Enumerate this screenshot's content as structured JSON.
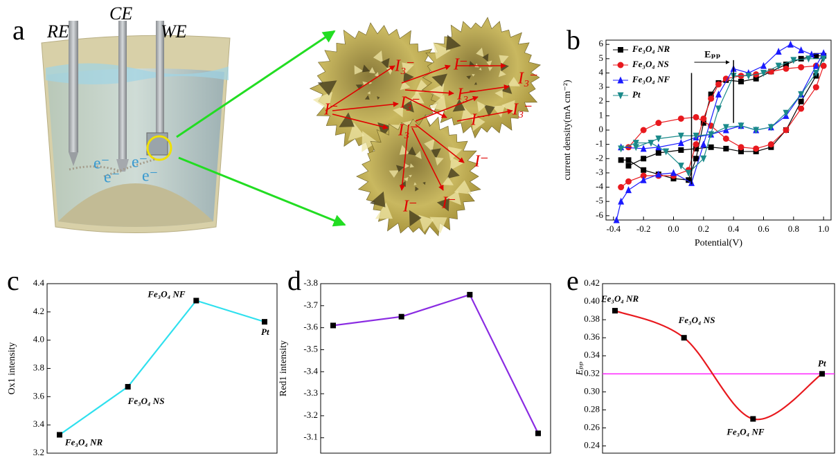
{
  "illustration": {
    "panel_label": "a",
    "electrodes": [
      "RE",
      "CE",
      "WE"
    ],
    "electron": "e⁻",
    "iodide": "I⁻",
    "triiodide": "I₃⁻"
  },
  "chart_data": [
    {
      "type": "line",
      "panel_label": "b",
      "xlabel": "Potential(V)",
      "ylabel": "current density(mA cm⁻²)",
      "xlim": [
        -0.45,
        1.05
      ],
      "xticks": [
        -0.4,
        -0.2,
        {
          "value": 0,
          "label": "0.0"
        },
        0.2,
        0.4,
        0.6,
        0.8,
        {
          "value": 1,
          "label": "1.0"
        }
      ],
      "ylim": [
        -6.3,
        6.3
      ],
      "yticks": [
        -6,
        -5,
        -4,
        -3,
        -2,
        -1,
        0,
        1,
        2,
        3,
        4,
        5,
        6
      ],
      "legend": "upper left",
      "annotation": {
        "text": "Eₚₚ",
        "lines": [
          {
            "x": 0.12,
            "y": [
              -3.8,
              4.0
            ]
          },
          {
            "x": 0.4,
            "y": [
              0.5,
              4.9
            ]
          }
        ]
      },
      "series": [
        {
          "name": "Fe₃O₄ NR",
          "color": "#000000",
          "marker": "square",
          "x": [
            -0.35,
            -0.3,
            -0.2,
            -0.1,
            0,
            0.1,
            0.15,
            0.2,
            0.25,
            0.3,
            0.35,
            0.45,
            0.55,
            0.65,
            0.75,
            0.85,
            0.95,
            1.0,
            0.95,
            0.85,
            0.75,
            0.65,
            0.55,
            0.45,
            0.35,
            0.25,
            0.15,
            0.05,
            -0.1,
            -0.2,
            -0.3
          ],
          "values": [
            -2.1,
            -2.1,
            -2.8,
            -3.1,
            -3.4,
            -3.5,
            -2.0,
            0.5,
            2.5,
            3.3,
            3.5,
            3.4,
            3.6,
            4.1,
            4.6,
            5.0,
            5.2,
            5.2,
            3.8,
            2.0,
            0.0,
            -1.2,
            -1.5,
            -1.5,
            -1.3,
            -1.2,
            -1.3,
            -1.4,
            -1.6,
            -2.0,
            -2.5
          ]
        },
        {
          "name": "Fe₃O₄ NS",
          "color": "#e8191e",
          "marker": "circle",
          "x": [
            -0.35,
            -0.3,
            -0.2,
            -0.1,
            0,
            0.1,
            0.15,
            0.2,
            0.25,
            0.3,
            0.35,
            0.45,
            0.55,
            0.65,
            0.75,
            0.85,
            0.95,
            1.0,
            0.95,
            0.85,
            0.75,
            0.65,
            0.55,
            0.45,
            0.35,
            0.25,
            0.15,
            0.05,
            -0.1,
            -0.2,
            -0.3
          ],
          "values": [
            -4.0,
            -3.6,
            -3.2,
            -3.2,
            -3.2,
            -2.8,
            -1.0,
            0.8,
            2.2,
            3.2,
            3.6,
            3.8,
            3.9,
            4.1,
            4.3,
            4.4,
            4.5,
            4.5,
            3.0,
            1.5,
            0.0,
            -1.0,
            -1.3,
            -1.2,
            -0.6,
            0.3,
            0.9,
            0.8,
            0.5,
            0.0,
            -1.2
          ]
        },
        {
          "name": "Fe₃O₄ NF",
          "color": "#1a1aff",
          "marker": "triangle-up",
          "x": [
            -0.38,
            -0.35,
            -0.3,
            -0.2,
            -0.1,
            0,
            0.12,
            0.2,
            0.3,
            0.4,
            0.5,
            0.6,
            0.7,
            0.78,
            0.85,
            0.92,
            1.0,
            0.95,
            0.85,
            0.75,
            0.65,
            0.55,
            0.45,
            0.35,
            0.25,
            0.15,
            0.05,
            -0.1,
            -0.2,
            -0.35
          ],
          "values": [
            -6.3,
            -5.0,
            -4.2,
            -3.5,
            -3.1,
            -3.0,
            -3.7,
            -1.0,
            2.5,
            4.3,
            4.0,
            4.5,
            5.5,
            6.0,
            5.6,
            5.3,
            5.4,
            4.5,
            2.5,
            1.0,
            0.2,
            0.0,
            0.3,
            0.0,
            -0.3,
            -0.5,
            -0.9,
            -1.2,
            -1.3,
            -1.2
          ]
        },
        {
          "name": "Pt",
          "color": "#1a8a8a",
          "marker": "triangle-down",
          "x": [
            -0.35,
            -0.25,
            -0.15,
            -0.05,
            0.05,
            0.1,
            0.2,
            0.3,
            0.4,
            0.5,
            0.6,
            0.7,
            0.8,
            0.9,
            1.0,
            0.95,
            0.85,
            0.75,
            0.65,
            0.55,
            0.45,
            0.35,
            0.25,
            0.15,
            0.05,
            -0.1,
            -0.25
          ],
          "values": [
            -1.3,
            -0.9,
            -0.9,
            -1.5,
            -2.5,
            -3.0,
            -2.0,
            1.5,
            3.8,
            3.8,
            4.0,
            4.5,
            4.9,
            5.0,
            5.0,
            4.0,
            2.5,
            1.2,
            0.2,
            0.0,
            0.3,
            0.2,
            -0.3,
            -0.4,
            -0.4,
            -0.6,
            -1.2
          ]
        }
      ]
    },
    {
      "type": "line",
      "panel_label": "c",
      "ylabel": "Ox1 intensity",
      "ylim": [
        3.2,
        4.4
      ],
      "yticks": [
        3.2,
        3.4,
        3.6,
        3.8,
        {
          "value": 4,
          "label": "4.0"
        },
        4.2,
        4.4
      ],
      "color": "#2fe0ee",
      "categories": [
        "Fe₃O₄ NR",
        "Fe₃O₄ NS",
        "Fe₃O₄ NF",
        "Pt"
      ],
      "values": [
        3.33,
        3.67,
        4.28,
        4.13
      ]
    },
    {
      "type": "line",
      "panel_label": "d",
      "ylabel": "Red1 intensity",
      "ylim": [
        -3.03,
        -3.8
      ],
      "yticks": [
        -3.8,
        -3.7,
        -3.6,
        -3.5,
        -3.4,
        -3.3,
        -3.2,
        -3.1
      ],
      "color": "#8a2be2",
      "categories": [
        null,
        null,
        null,
        null
      ],
      "values": [
        -3.61,
        -3.65,
        -3.75,
        -3.12
      ]
    },
    {
      "type": "line",
      "panel_label": "e",
      "ylabel": "Eₚₚ",
      "ylim": [
        0.232,
        0.42
      ],
      "yticks": [
        0.24,
        0.26,
        0.28,
        {
          "value": 0.3,
          "label": "0.30"
        },
        0.32,
        0.34,
        0.36,
        0.38,
        {
          "value": 0.4,
          "label": "0.40"
        },
        0.42
      ],
      "color": "#e8191e",
      "smooth": true,
      "hline": {
        "value": 0.32,
        "color": "#ff22ff"
      },
      "categories": [
        "Fe₃O₄ NR",
        "Fe₃O₄ NS",
        "Fe₃O₄ NF",
        "Pt"
      ],
      "values": [
        0.39,
        0.36,
        0.27,
        0.32
      ]
    }
  ]
}
